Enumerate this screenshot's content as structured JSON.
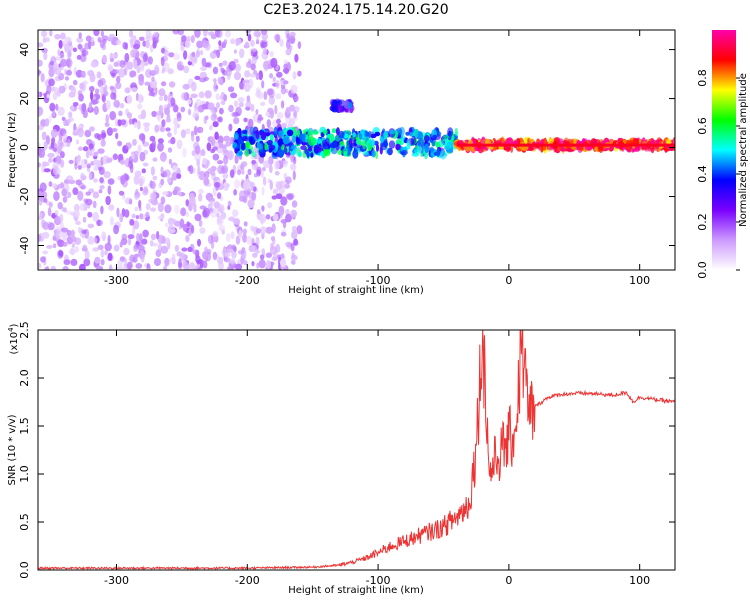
{
  "title": "C2E3.2024.175.14.20.G20",
  "chart_data": [
    {
      "type": "heatmap",
      "xlabel": "Height of straight line (km)",
      "ylabel": "Frequency (Hz)",
      "xlim": [
        -360,
        127
      ],
      "ylim": [
        -50,
        48
      ],
      "xticks": [
        -300,
        -200,
        -100,
        0,
        100
      ],
      "yticks": [
        -40,
        -20,
        0,
        20,
        40
      ],
      "colorbar": {
        "label": "Normalized spectral amplitude",
        "range": [
          0.0,
          1.0
        ],
        "ticks": [
          0.0,
          0.2,
          0.4,
          0.6,
          0.8
        ],
        "colormap": [
          "#ffffff",
          "#cc99ff",
          "#7a00ff",
          "#0000ff",
          "#00ffff",
          "#00ff00",
          "#ffff00",
          "#ff0000",
          "#ff00aa"
        ]
      },
      "features": [
        {
          "x_range": [
            -360,
            -160
          ],
          "freq_range": [
            -50,
            48
          ],
          "amplitude": 0.1
        },
        {
          "x_range": [
            -210,
            -40
          ],
          "freq_center": 2,
          "freq_width": 10,
          "amplitude": 0.45
        },
        {
          "x_range": [
            -135,
            -120
          ],
          "freq_center": 17,
          "amplitude": 0.3
        },
        {
          "x_range": [
            -40,
            127
          ],
          "freq_center": 1,
          "freq_width": 3,
          "amplitude": 0.9
        }
      ]
    },
    {
      "type": "line",
      "xlabel": "Height of straight line (km)",
      "ylabel": "SNR (10 * v/v)",
      "yscale_label": "(x10",
      "yscale_exp": "4",
      "xlim": [
        -360,
        127
      ],
      "ylim": [
        0.0,
        2.5
      ],
      "xticks": [
        -300,
        -200,
        -100,
        0,
        100
      ],
      "yticks": [
        "0.0",
        "0.5",
        "1.0",
        "1.5",
        "2.0",
        "2.5"
      ],
      "color": "#ee3333",
      "series": [
        {
          "x": [
            -360,
            -300,
            -200,
            -150,
            -130,
            -120,
            -110,
            -100,
            -90,
            -80,
            -70,
            -60,
            -50,
            -40,
            -30,
            -25,
            -20,
            -15,
            -10,
            -5,
            0,
            5,
            10,
            15,
            20,
            25,
            30,
            40,
            50,
            60,
            70,
            80,
            90,
            95,
            100,
            110,
            120,
            127
          ],
          "y": [
            0.02,
            0.02,
            0.02,
            0.03,
            0.05,
            0.08,
            0.12,
            0.18,
            0.25,
            0.3,
            0.35,
            0.4,
            0.45,
            0.55,
            0.7,
            1.3,
            2.5,
            1.0,
            1.15,
            1.25,
            1.35,
            1.45,
            2.4,
            1.6,
            1.7,
            1.75,
            1.8,
            1.83,
            1.84,
            1.84,
            1.83,
            1.82,
            1.85,
            1.75,
            1.8,
            1.78,
            1.76,
            1.75
          ]
        }
      ]
    }
  ]
}
